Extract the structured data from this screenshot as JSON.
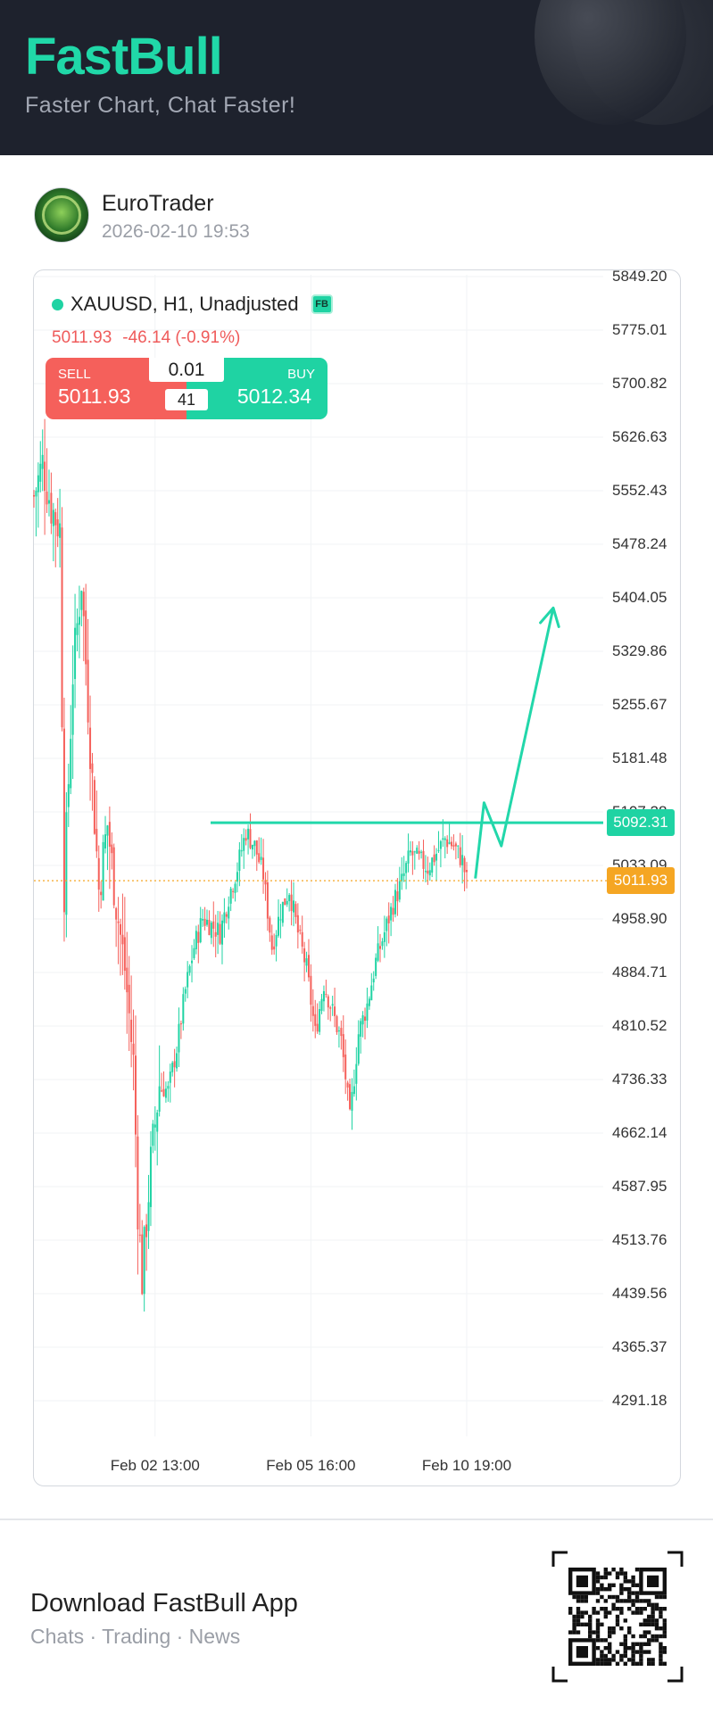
{
  "header": {
    "brand": "FastBull",
    "tagline": "Faster Chart, Chat Faster!"
  },
  "post": {
    "username": "EuroTrader",
    "timestamp": "2026-02-10 19:53"
  },
  "instrument": {
    "symbol_line": "XAUUSD, H1, Unadjusted",
    "badge": "FB",
    "last": "5011.93",
    "change": "-46.14 (-0.91%)"
  },
  "trade_panel": {
    "sell_label": "SELL",
    "sell_price": "5011.93",
    "buy_label": "BUY",
    "buy_price": "5012.34",
    "quantity": "0.01",
    "spread": "41"
  },
  "chart_data": {
    "type": "candlestick",
    "y_ticks": [
      "5849.20",
      "5775.01",
      "5700.82",
      "5626.63",
      "5552.43",
      "5478.24",
      "5404.05",
      "5329.86",
      "5255.67",
      "5181.48",
      "5107.28",
      "5033.09",
      "4958.90",
      "4884.71",
      "4810.52",
      "4736.33",
      "4662.14",
      "4587.95",
      "4513.76",
      "4439.56",
      "4365.37",
      "4291.18"
    ],
    "x_ticks": [
      {
        "label": "Feb 02 13:00",
        "index": 28
      },
      {
        "label": "Feb 05 16:00",
        "index": 64
      },
      {
        "label": "Feb 10 19:00",
        "index": 100
      }
    ],
    "ylim": [
      4250,
      5855
    ],
    "bars": 100,
    "price_path": [
      [
        0,
        5545
      ],
      [
        2,
        5590
      ],
      [
        4,
        5530
      ],
      [
        6,
        5500
      ],
      [
        7,
        5000
      ],
      [
        9,
        5300
      ],
      [
        11,
        5430
      ],
      [
        13,
        5200
      ],
      [
        15,
        5000
      ],
      [
        17,
        5090
      ],
      [
        19,
        4980
      ],
      [
        21,
        4890
      ],
      [
        23,
        4760
      ],
      [
        24,
        4560
      ],
      [
        25,
        4460
      ],
      [
        27,
        4620
      ],
      [
        29,
        4730
      ],
      [
        31,
        4720
      ],
      [
        33,
        4780
      ],
      [
        35,
        4860
      ],
      [
        37,
        4920
      ],
      [
        39,
        4960
      ],
      [
        41,
        4950
      ],
      [
        43,
        4940
      ],
      [
        45,
        4990
      ],
      [
        47,
        5030
      ],
      [
        49,
        5080
      ],
      [
        51,
        5060
      ],
      [
        53,
        5020
      ],
      [
        55,
        4920
      ],
      [
        57,
        4970
      ],
      [
        59,
        5000
      ],
      [
        61,
        4940
      ],
      [
        63,
        4890
      ],
      [
        65,
        4800
      ],
      [
        67,
        4870
      ],
      [
        69,
        4830
      ],
      [
        71,
        4790
      ],
      [
        72,
        4740
      ],
      [
        73,
        4680
      ],
      [
        75,
        4800
      ],
      [
        77,
        4840
      ],
      [
        79,
        4900
      ],
      [
        81,
        4940
      ],
      [
        83,
        4980
      ],
      [
        85,
        5010
      ],
      [
        87,
        5050
      ],
      [
        89,
        5040
      ],
      [
        91,
        5030
      ],
      [
        93,
        5050
      ],
      [
        95,
        5070
      ],
      [
        97,
        5060
      ],
      [
        99,
        5040
      ],
      [
        100,
        5011.93
      ]
    ],
    "drawings": {
      "horizontal_line": 5092.31,
      "arrow_path": [
        [
          102,
          5015
        ],
        [
          104,
          5120
        ],
        [
          108,
          5060
        ],
        [
          120,
          5390
        ]
      ]
    },
    "last_price": 5011.93,
    "price_labels": [
      "5092.31",
      "5011.93"
    ],
    "colors": {
      "up": "#1fd3a3",
      "down": "#f5605b",
      "drawing": "#22d7aa",
      "last_price": "#f5a623"
    },
    "grid": true
  },
  "footer": {
    "title": "Download FastBull App",
    "subtitle": "Chats · Trading · News"
  }
}
